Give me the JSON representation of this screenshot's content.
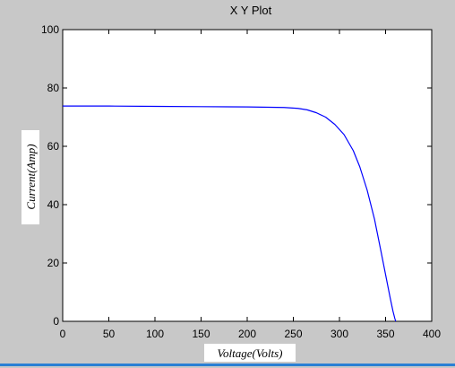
{
  "window": {
    "title": "X Y Plot"
  },
  "chart_data": {
    "type": "line",
    "title": "X Y Plot",
    "xlabel": "Voltage(Volts)",
    "ylabel": "Current(Amp)",
    "xlim": [
      0,
      400
    ],
    "ylim": [
      0,
      100
    ],
    "xticks": [
      0,
      50,
      100,
      150,
      200,
      250,
      300,
      350,
      400
    ],
    "yticks": [
      0,
      20,
      40,
      60,
      80,
      100
    ],
    "xtick_labels": [
      "0",
      "50",
      "100",
      "150",
      "200",
      "250",
      "300",
      "350",
      "400"
    ],
    "ytick_labels": [
      "0",
      "20",
      "40",
      "60",
      "80",
      "100"
    ],
    "grid": false,
    "series": [
      {
        "color": "#0000ff",
        "x": [
          0,
          50,
          100,
          150,
          200,
          240,
          255,
          265,
          275,
          285,
          295,
          305,
          315,
          322,
          330,
          338,
          345,
          350,
          355,
          358,
          360,
          361
        ],
        "y": [
          73.8,
          73.8,
          73.7,
          73.6,
          73.5,
          73.3,
          73.0,
          72.5,
          71.5,
          70.0,
          67.5,
          64.0,
          58.5,
          53.0,
          45.0,
          35.0,
          24.0,
          16.0,
          8.0,
          3.5,
          1.0,
          0
        ]
      }
    ]
  }
}
